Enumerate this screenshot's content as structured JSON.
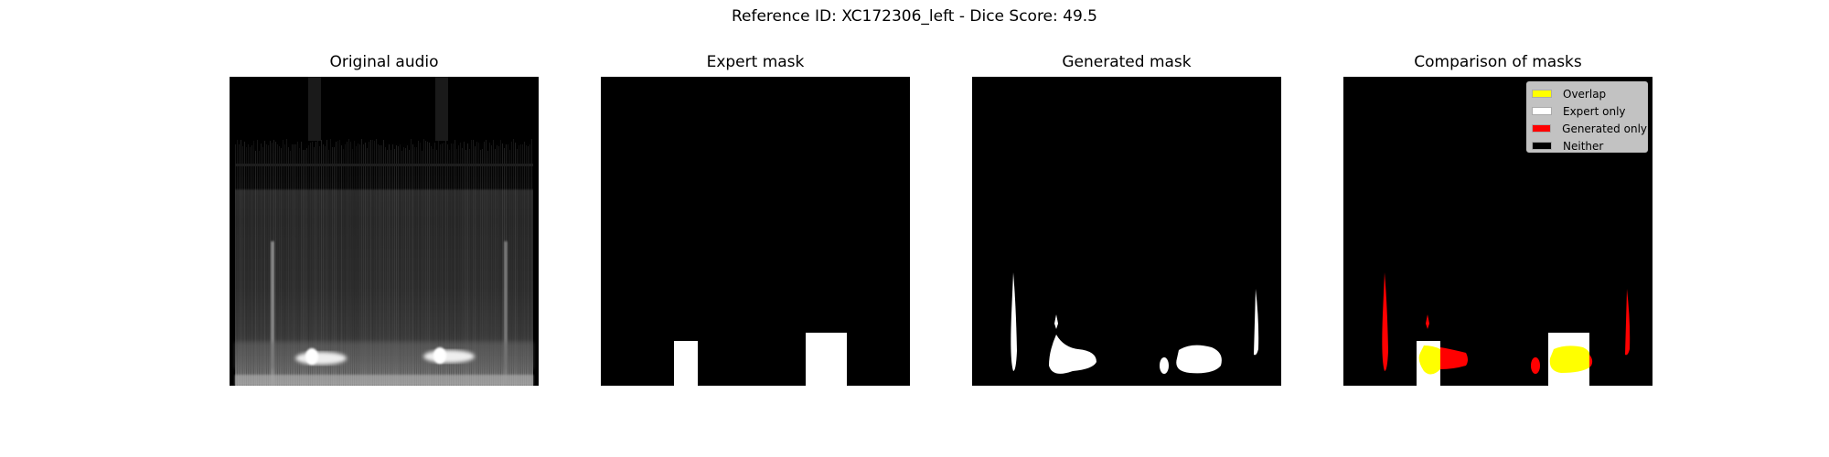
{
  "figure": {
    "title": "Reference ID: XC172306_left - Dice Score: 49.5"
  },
  "panels": [
    {
      "title": "Original audio"
    },
    {
      "title": "Expert mask"
    },
    {
      "title": "Generated mask"
    },
    {
      "title": "Comparison of masks"
    }
  ],
  "legend": {
    "placement": "upper-right",
    "items": [
      {
        "label": "Overlap",
        "color": "#ffff00"
      },
      {
        "label": "Expert only",
        "color": "#ffffff"
      },
      {
        "label": "Generated only",
        "color": "#ff0000"
      },
      {
        "label": "Neither",
        "color": "#000000"
      }
    ]
  },
  "colors": {
    "background": "#000000",
    "mask": "#ffffff",
    "overlap": "#ffff00",
    "generated_only": "#ff0000"
  }
}
